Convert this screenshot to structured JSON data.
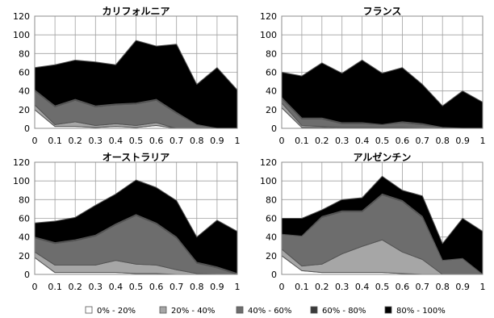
{
  "chart_data": [
    {
      "type": "area",
      "stacked": true,
      "title": "カリフォルニア",
      "x": [
        0,
        0.1,
        0.2,
        0.3,
        0.4,
        0.5,
        0.6,
        0.7,
        0.8,
        0.9,
        1
      ],
      "x_tick_labels": [
        "0",
        "0.1",
        "0.2",
        "0.3",
        "0.4",
        "0.5",
        "0.6",
        "0.7",
        "0.8",
        "0.9",
        "1"
      ],
      "ylim": [
        0,
        120
      ],
      "y_ticks": [
        0,
        20,
        40,
        60,
        80,
        100,
        120
      ],
      "grid": true,
      "series": [
        {
          "name": "0% - 20%",
          "values": [
            20,
            2,
            2,
            1,
            2,
            1,
            3,
            0,
            0,
            0,
            0
          ]
        },
        {
          "name": "20% - 40%",
          "values": [
            5,
            2,
            5,
            2,
            3,
            2,
            3,
            0,
            0,
            0,
            0
          ]
        },
        {
          "name": "40% - 60%",
          "values": [
            15,
            19,
            23,
            20,
            20,
            23,
            24,
            16,
            4,
            0,
            0
          ]
        },
        {
          "name": "60% - 80%",
          "values": [
            1,
            1,
            1,
            1,
            1,
            1,
            1,
            1,
            0,
            0,
            0
          ]
        },
        {
          "name": "80% - 100%",
          "values": [
            24,
            44,
            42,
            47,
            42,
            67,
            57,
            73,
            43,
            65,
            41
          ]
        }
      ]
    },
    {
      "type": "area",
      "stacked": true,
      "title": "フランス",
      "x": [
        0,
        0.1,
        0.2,
        0.3,
        0.4,
        0.5,
        0.6,
        0.7,
        0.8,
        0.9,
        1
      ],
      "x_tick_labels": [
        "0",
        "0.1",
        "0.2",
        "0.3",
        "0.4",
        "0.5",
        "0.6",
        "0.7",
        "0.8",
        "0.9",
        "1"
      ],
      "ylim": [
        0,
        120
      ],
      "y_ticks": [
        0,
        20,
        40,
        60,
        80,
        100,
        120
      ],
      "grid": true,
      "series": [
        {
          "name": "0% - 20%",
          "values": [
            22,
            1,
            1,
            0,
            0,
            0,
            0,
            0,
            0,
            0,
            0
          ]
        },
        {
          "name": "20% - 40%",
          "values": [
            5,
            2,
            1,
            1,
            1,
            1,
            1,
            0,
            0,
            0,
            0
          ]
        },
        {
          "name": "40% - 60%",
          "values": [
            5,
            7,
            8,
            4,
            4,
            3,
            5,
            4,
            1,
            0,
            0
          ]
        },
        {
          "name": "60% - 80%",
          "values": [
            1,
            1,
            1,
            1,
            1,
            0,
            1,
            1,
            0,
            0,
            0
          ]
        },
        {
          "name": "80% - 100%",
          "values": [
            27,
            45,
            59,
            53,
            67,
            55,
            58,
            42,
            23,
            40,
            28
          ]
        }
      ]
    },
    {
      "type": "area",
      "stacked": true,
      "title": "オーストラリア",
      "x": [
        0,
        0.1,
        0.2,
        0.3,
        0.4,
        0.5,
        0.6,
        0.7,
        0.8,
        0.9,
        1
      ],
      "x_tick_labels": [
        "0",
        "0.1",
        "0.2",
        "0.3",
        "0.4",
        "0.5",
        "0.6",
        "0.7",
        "0.8",
        "0.9",
        "1"
      ],
      "ylim": [
        0,
        120
      ],
      "y_ticks": [
        0,
        20,
        40,
        60,
        80,
        100,
        120
      ],
      "grid": true,
      "series": [
        {
          "name": "0% - 20%",
          "values": [
            18,
            2,
            2,
            2,
            2,
            1,
            1,
            0,
            0,
            0,
            0
          ]
        },
        {
          "name": "20% - 40%",
          "values": [
            6,
            8,
            8,
            8,
            13,
            10,
            9,
            5,
            1,
            0,
            0
          ]
        },
        {
          "name": "40% - 60%",
          "values": [
            15,
            23,
            26,
            31,
            38,
            52,
            44,
            34,
            11,
            7,
            0
          ]
        },
        {
          "name": "60% - 80%",
          "values": [
            1,
            1,
            1,
            1,
            1,
            1,
            1,
            1,
            1,
            1,
            1
          ]
        },
        {
          "name": "80% - 100%",
          "values": [
            15,
            23,
            24,
            32,
            32,
            37,
            38,
            39,
            27,
            50,
            45
          ]
        }
      ]
    },
    {
      "type": "area",
      "stacked": true,
      "title": "アルゼンチン",
      "x": [
        0,
        0.1,
        0.2,
        0.3,
        0.4,
        0.5,
        0.6,
        0.7,
        0.8,
        0.9,
        1
      ],
      "x_tick_labels": [
        "0",
        "0.1",
        "0.2",
        "0.3",
        "0.4",
        "0.5",
        "0.6",
        "0.7",
        "0.8",
        "0.9",
        "1"
      ],
      "ylim": [
        0,
        120
      ],
      "y_ticks": [
        0,
        20,
        40,
        60,
        80,
        100,
        120
      ],
      "grid": true,
      "series": [
        {
          "name": "0% - 20%",
          "values": [
            20,
            4,
            2,
            2,
            2,
            2,
            1,
            0,
            0,
            0,
            0
          ]
        },
        {
          "name": "20% - 40%",
          "values": [
            7,
            5,
            9,
            20,
            28,
            35,
            23,
            16,
            0,
            0,
            0
          ]
        },
        {
          "name": "40% - 60%",
          "values": [
            16,
            32,
            50,
            45,
            37,
            48,
            54,
            45,
            15,
            17,
            0
          ]
        },
        {
          "name": "60% - 80%",
          "values": [
            0,
            0,
            1,
            1,
            1,
            1,
            1,
            1,
            0,
            0,
            0
          ]
        },
        {
          "name": "80% - 100%",
          "values": [
            17,
            19,
            7,
            12,
            14,
            19,
            11,
            22,
            18,
            43,
            46
          ]
        }
      ]
    }
  ],
  "legend": {
    "placement": "bottom",
    "items": [
      "0% - 20%",
      "20% - 40%",
      "40% - 60%",
      "60% - 80%",
      "80% - 100%"
    ]
  },
  "colors": [
    "#ffffff",
    "#a6a6a6",
    "#6d6d6d",
    "#3a3a3a",
    "#000000"
  ],
  "grid_color": "#a0a0a0"
}
